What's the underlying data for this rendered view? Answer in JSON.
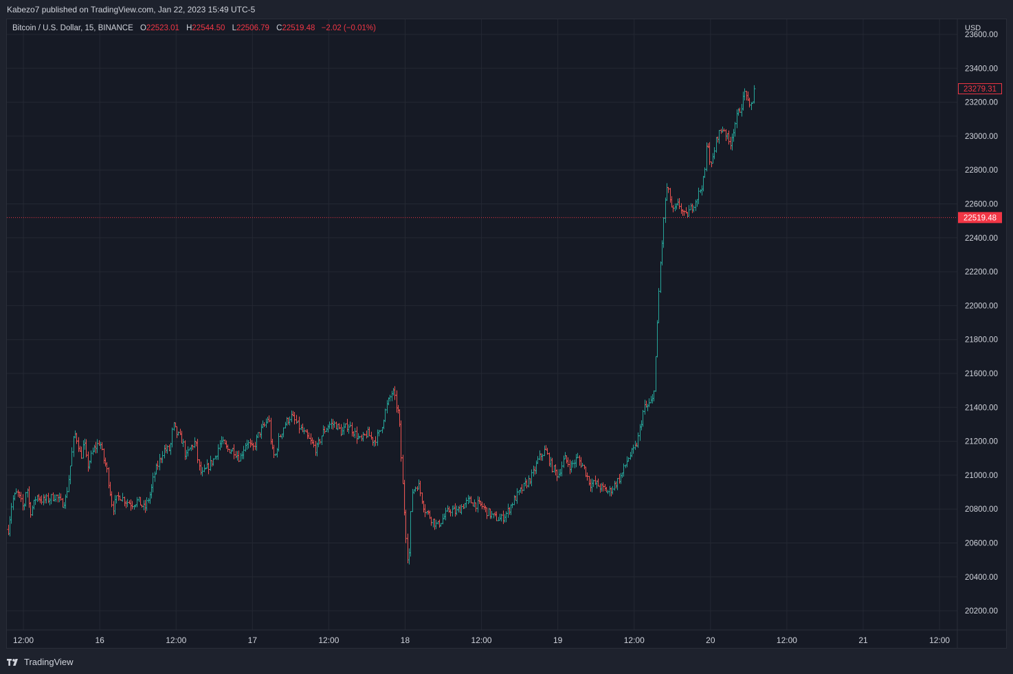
{
  "header": {
    "published_line": "Kabezo7 published on TradingView.com, Jan 22, 2023 15:49 UTC-5"
  },
  "legend": {
    "symbol": "Bitcoin / U.S. Dollar, 15, BINANCE",
    "open_label": "O",
    "open": "22523.01",
    "high_label": "H",
    "high": "22544.50",
    "low_label": "L",
    "low": "22506.79",
    "close_label": "C",
    "close": "22519.48",
    "change": "−2.02 (−0.01%)"
  },
  "footer": {
    "brand": "TradingView",
    "logo_icon": "tradingview-logo-icon"
  },
  "colors": {
    "up": "#26a69a",
    "down": "#ef5350",
    "background": "#161a25",
    "grid": "#242833",
    "text": "#d1d4dc",
    "price_line": "#f23645"
  },
  "chart_data": {
    "type": "candlestick",
    "symbol": "BTCUSD",
    "interval": "15",
    "exchange": "BINANCE",
    "currency_label": "USD",
    "ylim": [
      20100,
      23700
    ],
    "y_ticks": [
      "23600.00",
      "23400.00",
      "23200.00",
      "23000.00",
      "22800.00",
      "22600.00",
      "22400.00",
      "22200.00",
      "22000.00",
      "21800.00",
      "21600.00",
      "21400.00",
      "21200.00",
      "21000.00",
      "20800.00",
      "20600.00",
      "20400.00",
      "20200.00"
    ],
    "x_ticks": [
      {
        "t": 0,
        "label": "12:00"
      },
      {
        "t": 12,
        "label": "16"
      },
      {
        "t": 24,
        "label": "12:00"
      },
      {
        "t": 36,
        "label": "17"
      },
      {
        "t": 48,
        "label": "12:00"
      },
      {
        "t": 60,
        "label": "18"
      },
      {
        "t": 72,
        "label": "12:00"
      },
      {
        "t": 84,
        "label": "19"
      },
      {
        "t": 96,
        "label": "12:00"
      },
      {
        "t": 108,
        "label": "20"
      },
      {
        "t": 120,
        "label": "12:00"
      },
      {
        "t": 132,
        "label": "21"
      },
      {
        "t": 144,
        "label": "12:00"
      }
    ],
    "x_range": [
      -2.6,
      146.8
    ],
    "last_price_label": "22519.48",
    "last_price": 22519.48,
    "marked_price_label": "23279.31",
    "grid": true,
    "series_hours": [
      [
        -2.4,
        20680
      ],
      [
        -1.8,
        20850
      ],
      [
        -1,
        20900
      ],
      [
        0,
        20800
      ],
      [
        0.5,
        20950
      ],
      [
        1,
        20780
      ],
      [
        1.5,
        20820
      ],
      [
        2,
        20880
      ],
      [
        3,
        20850
      ],
      [
        4,
        20860
      ],
      [
        5,
        20880
      ],
      [
        6,
        20830
      ],
      [
        6.6,
        20860
      ],
      [
        7,
        20950
      ],
      [
        7.5,
        21100
      ],
      [
        8,
        21250
      ],
      [
        8.5,
        21200
      ],
      [
        9,
        21100
      ],
      [
        9.5,
        21200
      ],
      [
        10,
        21050
      ],
      [
        10.5,
        21100
      ],
      [
        11,
        21150
      ],
      [
        12,
        21200
      ],
      [
        12.5,
        21100
      ],
      [
        13,
        21050
      ],
      [
        14,
        20800
      ],
      [
        14.5,
        20850
      ],
      [
        15,
        20880
      ],
      [
        16,
        20850
      ],
      [
        17,
        20830
      ],
      [
        18,
        20850
      ],
      [
        19,
        20800
      ],
      [
        19.5,
        20850
      ],
      [
        20,
        20900
      ],
      [
        20.5,
        21000
      ],
      [
        21,
        21050
      ],
      [
        22,
        21150
      ],
      [
        23,
        21150
      ],
      [
        23.5,
        21300
      ],
      [
        24,
        21250
      ],
      [
        25,
        21200
      ],
      [
        25.5,
        21100
      ],
      [
        26,
        21150
      ],
      [
        27,
        21200
      ],
      [
        27.5,
        21050
      ],
      [
        28,
        21000
      ],
      [
        29,
        21050
      ],
      [
        30,
        21100
      ],
      [
        31,
        21200
      ],
      [
        32,
        21150
      ],
      [
        33,
        21150
      ],
      [
        34,
        21100
      ],
      [
        35,
        21200
      ],
      [
        36,
        21150
      ],
      [
        37,
        21250
      ],
      [
        38,
        21300
      ],
      [
        38.5,
        21350
      ],
      [
        39,
        21150
      ],
      [
        39.5,
        21100
      ],
      [
        40,
        21200
      ],
      [
        41,
        21300
      ],
      [
        42,
        21350
      ],
      [
        43,
        21300
      ],
      [
        44,
        21250
      ],
      [
        45,
        21200
      ],
      [
        46,
        21150
      ],
      [
        47,
        21250
      ],
      [
        48,
        21300
      ],
      [
        49,
        21300
      ],
      [
        50,
        21250
      ],
      [
        51,
        21300
      ],
      [
        52,
        21250
      ],
      [
        53,
        21200
      ],
      [
        54,
        21250
      ],
      [
        55,
        21200
      ],
      [
        56,
        21250
      ],
      [
        57,
        21400
      ],
      [
        58,
        21500
      ],
      [
        59,
        21350
      ],
      [
        59.5,
        21000
      ],
      [
        60,
        20700
      ],
      [
        60.5,
        20450
      ],
      [
        61,
        20900
      ],
      [
        62,
        20950
      ],
      [
        63,
        20800
      ],
      [
        64,
        20750
      ],
      [
        65,
        20700
      ],
      [
        66,
        20750
      ],
      [
        67,
        20800
      ],
      [
        68,
        20780
      ],
      [
        69,
        20820
      ],
      [
        70,
        20850
      ],
      [
        71,
        20830
      ],
      [
        72,
        20820
      ],
      [
        73,
        20780
      ],
      [
        74,
        20750
      ],
      [
        75,
        20740
      ],
      [
        76,
        20780
      ],
      [
        77,
        20850
      ],
      [
        78,
        20900
      ],
      [
        79,
        20950
      ],
      [
        80,
        21000
      ],
      [
        81,
        21100
      ],
      [
        82,
        21150
      ],
      [
        83,
        21050
      ],
      [
        84,
        21000
      ],
      [
        85,
        21100
      ],
      [
        86,
        21050
      ],
      [
        87,
        21100
      ],
      [
        88,
        21050
      ],
      [
        89,
        20950
      ],
      [
        90,
        20950
      ],
      [
        91,
        20920
      ],
      [
        92,
        20900
      ],
      [
        93,
        20950
      ],
      [
        94,
        21000
      ],
      [
        95,
        21100
      ],
      [
        96,
        21150
      ],
      [
        96.5,
        21200
      ],
      [
        97,
        21300
      ],
      [
        97.5,
        21400
      ],
      [
        98,
        21400
      ],
      [
        99,
        21450
      ],
      [
        99.5,
        21800
      ],
      [
        100,
        22200
      ],
      [
        100.5,
        22450
      ],
      [
        101,
        22700
      ],
      [
        101.5,
        22650
      ],
      [
        102,
        22550
      ],
      [
        103,
        22600
      ],
      [
        104,
        22520
      ],
      [
        105,
        22580
      ],
      [
        106,
        22650
      ],
      [
        107,
        22750
      ],
      [
        107.5,
        23000
      ],
      [
        108,
        22800
      ],
      [
        109,
        23000
      ],
      [
        110,
        23050
      ],
      [
        111,
        22950
      ],
      [
        112,
        23100
      ],
      [
        113,
        23200
      ],
      [
        113.5,
        23280
      ],
      [
        114,
        23150
      ],
      [
        114.5,
        23200
      ],
      [
        115,
        23279.31
      ]
    ]
  }
}
